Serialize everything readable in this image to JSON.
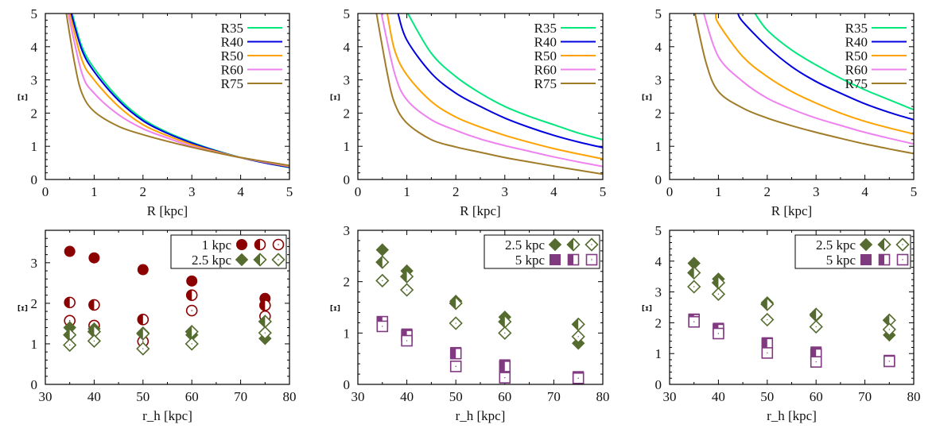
{
  "chart_data": [
    {
      "type": "line",
      "xlabel": "R [kpc]",
      "ylabel": "[ɪ]",
      "xlim": [
        0,
        5
      ],
      "ylim": [
        0,
        5
      ],
      "xticks": [
        0,
        1,
        2,
        3,
        4,
        5
      ],
      "yticks": [
        0,
        1,
        2,
        3,
        4,
        5
      ],
      "grid": false,
      "legend_position": "top-right",
      "series": [
        {
          "name": "R35",
          "color": "#00e87c",
          "x": [
            0.55,
            0.75,
            1,
            1.5,
            2,
            2.5,
            3,
            3.5,
            4,
            4.5,
            5
          ],
          "y": [
            5,
            4.0,
            3.35,
            2.45,
            1.82,
            1.42,
            1.12,
            0.87,
            0.66,
            0.5,
            0.36
          ]
        },
        {
          "name": "R40",
          "color": "#0000e0",
          "x": [
            0.53,
            0.75,
            1,
            1.5,
            2,
            2.5,
            3,
            3.5,
            4,
            4.5,
            5
          ],
          "y": [
            5,
            3.9,
            3.25,
            2.38,
            1.77,
            1.39,
            1.1,
            0.86,
            0.66,
            0.5,
            0.37
          ]
        },
        {
          "name": "R50",
          "color": "#ffa200",
          "x": [
            0.5,
            0.75,
            1,
            1.5,
            2,
            2.5,
            3,
            3.5,
            4,
            4.5,
            5
          ],
          "y": [
            5,
            3.6,
            3.0,
            2.2,
            1.65,
            1.32,
            1.05,
            0.84,
            0.66,
            0.52,
            0.39
          ]
        },
        {
          "name": "R60",
          "color": "#ee82ee",
          "x": [
            0.47,
            0.75,
            1,
            1.5,
            2,
            2.5,
            3,
            3.5,
            4,
            4.5,
            5
          ],
          "y": [
            5,
            3.2,
            2.6,
            1.95,
            1.53,
            1.25,
            1.0,
            0.82,
            0.66,
            0.53,
            0.41
          ]
        },
        {
          "name": "R75",
          "color": "#a07c28",
          "x": [
            0.43,
            0.6,
            0.75,
            1,
            1.5,
            2,
            2.5,
            3,
            3.5,
            4,
            4.5,
            5
          ],
          "y": [
            5,
            3.5,
            2.6,
            2.05,
            1.6,
            1.35,
            1.15,
            0.97,
            0.81,
            0.66,
            0.54,
            0.42
          ]
        }
      ]
    },
    {
      "type": "line",
      "xlabel": "R [kpc]",
      "ylabel": "[ɪ]",
      "xlim": [
        0,
        5
      ],
      "ylim": [
        0,
        5
      ],
      "xticks": [
        0,
        1,
        2,
        3,
        4,
        5
      ],
      "yticks": [
        0,
        1,
        2,
        3,
        4,
        5
      ],
      "grid": false,
      "legend_position": "top-right",
      "series": [
        {
          "name": "R35",
          "color": "#00e87c",
          "x": [
            1.02,
            1.5,
            2,
            2.5,
            3,
            3.5,
            4,
            4.5,
            5
          ],
          "y": [
            5,
            3.8,
            3.1,
            2.6,
            2.2,
            1.9,
            1.65,
            1.4,
            1.2
          ]
        },
        {
          "name": "R40",
          "color": "#0000e0",
          "x": [
            0.82,
            1,
            1.5,
            2,
            2.5,
            3,
            3.5,
            4,
            4.5,
            5
          ],
          "y": [
            5,
            4.2,
            3.2,
            2.6,
            2.2,
            1.85,
            1.57,
            1.33,
            1.13,
            0.96
          ]
        },
        {
          "name": "R50",
          "color": "#ffa200",
          "x": [
            0.6,
            0.75,
            1,
            1.5,
            2,
            2.5,
            3,
            3.5,
            4,
            4.5,
            5
          ],
          "y": [
            5,
            3.9,
            3.15,
            2.35,
            1.88,
            1.58,
            1.33,
            1.12,
            0.93,
            0.77,
            0.62
          ]
        },
        {
          "name": "R60",
          "color": "#ee82ee",
          "x": [
            0.48,
            0.75,
            1,
            1.5,
            2,
            2.5,
            3,
            3.5,
            4,
            4.5,
            5
          ],
          "y": [
            5,
            3.2,
            2.4,
            1.8,
            1.48,
            1.22,
            1.02,
            0.85,
            0.68,
            0.53,
            0.39
          ]
        },
        {
          "name": "R75",
          "color": "#a07c28",
          "x": [
            0.38,
            0.6,
            0.75,
            1,
            1.5,
            2,
            2.5,
            3,
            3.5,
            4,
            4.5,
            5
          ],
          "y": [
            5,
            3.2,
            2.3,
            1.7,
            1.2,
            0.98,
            0.82,
            0.66,
            0.53,
            0.4,
            0.28,
            0.16
          ]
        }
      ]
    },
    {
      "type": "line",
      "xlabel": "R [kpc]",
      "ylabel": "[ɪ]",
      "xlim": [
        0,
        5
      ],
      "ylim": [
        0,
        5
      ],
      "xticks": [
        0,
        1,
        2,
        3,
        4,
        5
      ],
      "yticks": [
        0,
        1,
        2,
        3,
        4,
        5
      ],
      "grid": false,
      "legend_position": "top-right",
      "series": [
        {
          "name": "R35",
          "color": "#00e87c",
          "x": [
            1.75,
            2,
            2.5,
            3,
            3.5,
            4,
            4.5,
            5
          ],
          "y": [
            5,
            4.5,
            3.9,
            3.45,
            3.05,
            2.7,
            2.4,
            2.1
          ]
        },
        {
          "name": "R40",
          "color": "#0000e0",
          "x": [
            1.4,
            1.5,
            2,
            2.5,
            3,
            3.5,
            4,
            4.5,
            5
          ],
          "y": [
            5,
            4.75,
            4.0,
            3.4,
            2.95,
            2.6,
            2.28,
            2.02,
            1.8
          ]
        },
        {
          "name": "R50",
          "color": "#ffa200",
          "x": [
            0.95,
            1,
            1.5,
            2,
            2.5,
            3,
            3.5,
            4,
            4.5,
            5
          ],
          "y": [
            5,
            4.7,
            3.7,
            3.1,
            2.65,
            2.3,
            2.0,
            1.75,
            1.55,
            1.37
          ]
        },
        {
          "name": "R60",
          "color": "#ee82ee",
          "x": [
            0.7,
            1,
            1.5,
            2,
            2.5,
            3,
            3.5,
            4,
            4.5,
            5
          ],
          "y": [
            5,
            3.7,
            2.95,
            2.45,
            2.12,
            1.85,
            1.63,
            1.42,
            1.24,
            1.07
          ]
        },
        {
          "name": "R75",
          "color": "#a07c28",
          "x": [
            0.52,
            0.75,
            1,
            1.5,
            2,
            2.5,
            3,
            3.5,
            4,
            4.5,
            5
          ],
          "y": [
            5,
            3.5,
            2.65,
            2.15,
            1.85,
            1.62,
            1.42,
            1.24,
            1.07,
            0.92,
            0.78
          ]
        }
      ]
    },
    {
      "type": "scatter",
      "xlabel": "r_h [kpc]",
      "ylabel": "[ɪ]",
      "xlim": [
        30,
        80
      ],
      "ylim": [
        0,
        3.8
      ],
      "xticks": [
        30,
        40,
        50,
        60,
        70,
        80
      ],
      "yticks": [
        0,
        1,
        2,
        3
      ],
      "grid": false,
      "legend_position": "top-right",
      "x": [
        35,
        40,
        50,
        60,
        75
      ],
      "groups": [
        {
          "name": "1 kpc",
          "color": "#8b0000",
          "marker": "circle",
          "filled": [
            3.28,
            3.12,
            2.83,
            2.55,
            2.12
          ],
          "half": [
            2.02,
            1.96,
            1.6,
            2.2,
            1.95
          ],
          "open": [
            1.57,
            1.45,
            1.06,
            1.82,
            1.68
          ]
        },
        {
          "name": "2.5 kpc",
          "color": "#556b2f",
          "marker": "diamond",
          "filled": [
            1.4,
            1.37,
            1.27,
            1.22,
            1.13
          ],
          "half": [
            1.22,
            1.3,
            1.25,
            1.3,
            1.55
          ],
          "open": [
            0.97,
            1.07,
            0.88,
            1.0,
            1.27
          ]
        }
      ]
    },
    {
      "type": "scatter",
      "xlabel": "r_h [kpc]",
      "ylabel": "[ɪ]",
      "xlim": [
        30,
        80
      ],
      "ylim": [
        0,
        3
      ],
      "xticks": [
        30,
        40,
        50,
        60,
        70,
        80
      ],
      "yticks": [
        0,
        1,
        2,
        3
      ],
      "grid": false,
      "legend_position": "top-right",
      "x": [
        35,
        40,
        50,
        60,
        75
      ],
      "groups": [
        {
          "name": "2.5 kpc",
          "color": "#556b2f",
          "marker": "diamond",
          "filled": [
            2.62,
            2.21,
            1.62,
            1.31,
            0.8
          ],
          "half": [
            2.38,
            2.1,
            1.58,
            1.22,
            1.17
          ],
          "open": [
            2.02,
            1.84,
            1.19,
            1.0,
            0.93
          ]
        },
        {
          "name": "5 kpc",
          "color": "#803a80",
          "marker": "square",
          "filled": [
            1.2,
            0.98,
            0.62,
            0.38,
            0.15
          ],
          "half": [
            1.22,
            0.95,
            0.6,
            0.35,
            0.13
          ],
          "open": [
            1.13,
            0.85,
            0.35,
            0.13,
            0.12
          ]
        }
      ]
    },
    {
      "type": "scatter",
      "xlabel": "r_h [kpc]",
      "ylabel": "[ɪ]",
      "xlim": [
        30,
        80
      ],
      "ylim": [
        0,
        5
      ],
      "xticks": [
        30,
        40,
        50,
        60,
        70,
        80
      ],
      "yticks": [
        0,
        1,
        2,
        3,
        4,
        5
      ],
      "grid": false,
      "legend_position": "top-right",
      "x": [
        35,
        40,
        50,
        60,
        75
      ],
      "groups": [
        {
          "name": "2.5 kpc",
          "color": "#556b2f",
          "marker": "diamond",
          "filled": [
            3.93,
            3.42,
            2.65,
            2.23,
            1.6
          ],
          "half": [
            3.62,
            3.3,
            2.6,
            2.27,
            2.08
          ],
          "open": [
            3.17,
            2.93,
            2.1,
            1.87,
            1.78
          ]
        },
        {
          "name": "5 kpc",
          "color": "#803a80",
          "marker": "square",
          "filled": [
            2.12,
            1.82,
            1.35,
            1.05,
            0.78
          ],
          "half": [
            2.1,
            1.78,
            1.32,
            0.98,
            0.75
          ],
          "open": [
            2.03,
            1.65,
            1.02,
            0.73,
            0.75
          ]
        }
      ]
    }
  ]
}
